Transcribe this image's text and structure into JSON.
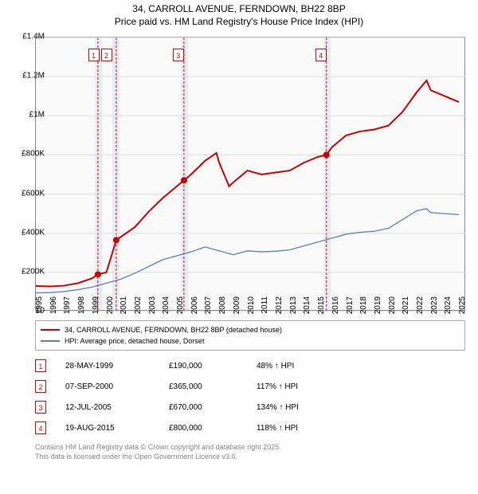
{
  "title_line1": "34, CARROLL AVENUE, FERNDOWN, BH22 8BP",
  "title_line2": "Price paid vs. HM Land Registry's House Price Index (HPI)",
  "chart": {
    "type": "line",
    "background_color": "#fafafa",
    "grid_color": "#dddddd",
    "x_years": [
      1995,
      1996,
      1997,
      1998,
      1999,
      2000,
      2001,
      2002,
      2003,
      2004,
      2005,
      2006,
      2007,
      2008,
      2009,
      2010,
      2011,
      2012,
      2013,
      2014,
      2015,
      2016,
      2017,
      2018,
      2019,
      2020,
      2021,
      2022,
      2023,
      2024,
      2025
    ],
    "xlim": [
      1995,
      2025.5
    ],
    "ylim": [
      0,
      1400000
    ],
    "ytick_values": [
      0,
      200000,
      400000,
      600000,
      800000,
      1000000,
      1200000,
      1400000
    ],
    "ytick_labels": [
      "£0",
      "£200K",
      "£400K",
      "£600K",
      "£800K",
      "£1M",
      "£1.2M",
      "£1.4M"
    ],
    "band_ranges": [
      [
        1999.2,
        1999.7
      ],
      [
        2000.4,
        2000.9
      ],
      [
        2005.3,
        2005.8
      ],
      [
        2015.4,
        2015.9
      ]
    ],
    "vline_x": [
      1999.4,
      2000.7,
      2005.5,
      2015.6
    ],
    "marker_boxes": [
      {
        "n": "1",
        "x": 1999.1
      },
      {
        "n": "2",
        "x": 2000.0
      },
      {
        "n": "3",
        "x": 2005.1
      },
      {
        "n": "4",
        "x": 2015.2
      }
    ],
    "series_a": {
      "label": "34, CARROLL AVENUE, FERNDOWN, BH22 8BP (detached house)",
      "color": "#cc0000",
      "line_width": 2,
      "marker_color": "#cc0000",
      "data": [
        [
          1995,
          130000
        ],
        [
          1996,
          128000
        ],
        [
          1997,
          132000
        ],
        [
          1998,
          145000
        ],
        [
          1999,
          170000
        ],
        [
          1999.4,
          190000
        ],
        [
          2000,
          200000
        ],
        [
          2000.7,
          365000
        ],
        [
          2001,
          380000
        ],
        [
          2002,
          430000
        ],
        [
          2003,
          510000
        ],
        [
          2004,
          580000
        ],
        [
          2005,
          640000
        ],
        [
          2005.5,
          670000
        ],
        [
          2006,
          700000
        ],
        [
          2007,
          770000
        ],
        [
          2007.8,
          810000
        ],
        [
          2008,
          760000
        ],
        [
          2008.7,
          640000
        ],
        [
          2009,
          660000
        ],
        [
          2010,
          720000
        ],
        [
          2011,
          700000
        ],
        [
          2012,
          710000
        ],
        [
          2013,
          720000
        ],
        [
          2014,
          760000
        ],
        [
          2015,
          790000
        ],
        [
          2015.6,
          800000
        ],
        [
          2016,
          840000
        ],
        [
          2017,
          900000
        ],
        [
          2018,
          920000
        ],
        [
          2019,
          930000
        ],
        [
          2020,
          950000
        ],
        [
          2021,
          1020000
        ],
        [
          2022,
          1120000
        ],
        [
          2022.7,
          1180000
        ],
        [
          2023,
          1130000
        ],
        [
          2024,
          1100000
        ],
        [
          2025,
          1070000
        ]
      ],
      "sale_points": [
        [
          1999.4,
          190000
        ],
        [
          2000.7,
          365000
        ],
        [
          2005.5,
          670000
        ],
        [
          2015.6,
          800000
        ]
      ]
    },
    "series_b": {
      "label": "HPI: Average price, detached house, Dorset",
      "color": "#5b7fb5",
      "line_width": 1.3,
      "data": [
        [
          1995,
          95000
        ],
        [
          1996,
          97000
        ],
        [
          1997,
          102000
        ],
        [
          1998,
          112000
        ],
        [
          1999,
          125000
        ],
        [
          2000,
          145000
        ],
        [
          2001,
          165000
        ],
        [
          2002,
          195000
        ],
        [
          2003,
          230000
        ],
        [
          2004,
          265000
        ],
        [
          2005,
          285000
        ],
        [
          2006,
          305000
        ],
        [
          2007,
          330000
        ],
        [
          2008,
          310000
        ],
        [
          2009,
          290000
        ],
        [
          2010,
          310000
        ],
        [
          2011,
          305000
        ],
        [
          2012,
          308000
        ],
        [
          2013,
          315000
        ],
        [
          2014,
          335000
        ],
        [
          2015,
          355000
        ],
        [
          2016,
          375000
        ],
        [
          2017,
          395000
        ],
        [
          2018,
          405000
        ],
        [
          2019,
          410000
        ],
        [
          2020,
          425000
        ],
        [
          2021,
          470000
        ],
        [
          2022,
          515000
        ],
        [
          2022.7,
          525000
        ],
        [
          2023,
          505000
        ],
        [
          2024,
          500000
        ],
        [
          2025,
          495000
        ]
      ]
    }
  },
  "legend": {
    "row_a_color": "#cc0000",
    "row_b_color": "#5b7fb5"
  },
  "sales": [
    {
      "n": "1",
      "date": "28-MAY-1999",
      "price": "£190,000",
      "pct": "48% ↑ HPI"
    },
    {
      "n": "2",
      "date": "07-SEP-2000",
      "price": "£365,000",
      "pct": "117% ↑ HPI"
    },
    {
      "n": "3",
      "date": "12-JUL-2005",
      "price": "£670,000",
      "pct": "134% ↑ HPI"
    },
    {
      "n": "4",
      "date": "19-AUG-2015",
      "price": "£800,000",
      "pct": "118% ↑ HPI"
    }
  ],
  "footnote_line1": "Contains HM Land Registry data © Crown copyright and database right 2025.",
  "footnote_line2": "This data is licensed under the Open Government Licence v3.0."
}
